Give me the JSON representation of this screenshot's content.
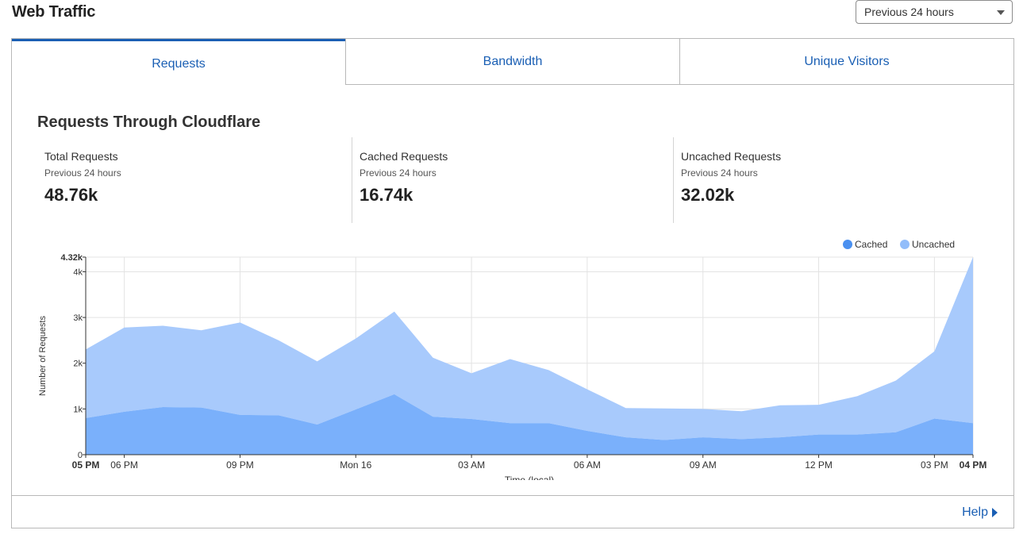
{
  "header": {
    "title": "Web Traffic",
    "range_selected": "Previous 24 hours"
  },
  "tabs": [
    {
      "label": "Requests",
      "active": true
    },
    {
      "label": "Bandwidth",
      "active": false
    },
    {
      "label": "Unique Visitors",
      "active": false
    }
  ],
  "section": {
    "title": "Requests Through Cloudflare"
  },
  "stats": [
    {
      "label": "Total Requests",
      "sub": "Previous 24 hours",
      "value": "48.76k"
    },
    {
      "label": "Cached Requests",
      "sub": "Previous 24 hours",
      "value": "16.74k"
    },
    {
      "label": "Uncached Requests",
      "sub": "Previous 24 hours",
      "value": "32.02k"
    }
  ],
  "footer": {
    "help_label": "Help"
  },
  "colors": {
    "accent": "#1a5fb4",
    "cached": "#7ab0fb",
    "uncached": "#a8cafc",
    "legend_cached": "#4a90f0",
    "legend_uncached": "#92bdfa"
  },
  "chart_data": {
    "type": "area",
    "stacked": true,
    "xlabel": "Time (local)",
    "ylabel": "Number of Requests",
    "ylim": [
      0,
      4320
    ],
    "y_ticks": [
      {
        "value": 0,
        "label": "0"
      },
      {
        "value": 1000,
        "label": "1k"
      },
      {
        "value": 2000,
        "label": "2k"
      },
      {
        "value": 3000,
        "label": "3k"
      },
      {
        "value": 4000,
        "label": "4k"
      },
      {
        "value": 4320,
        "label": "4.32k"
      }
    ],
    "x": [
      0,
      1,
      2,
      3,
      4,
      5,
      6,
      7,
      8,
      9,
      10,
      11,
      12,
      13,
      14,
      15,
      16,
      17,
      18,
      19,
      20,
      21,
      22,
      23
    ],
    "x_ticks": [
      {
        "x": 0,
        "label": "05 PM",
        "bold": true
      },
      {
        "x": 1,
        "label": "06 PM",
        "bold": false
      },
      {
        "x": 4,
        "label": "09 PM",
        "bold": false
      },
      {
        "x": 7,
        "label": "Mon 16",
        "bold": false
      },
      {
        "x": 10,
        "label": "03 AM",
        "bold": false
      },
      {
        "x": 13,
        "label": "06 AM",
        "bold": false
      },
      {
        "x": 16,
        "label": "09 AM",
        "bold": false
      },
      {
        "x": 19,
        "label": "12 PM",
        "bold": false
      },
      {
        "x": 22,
        "label": "03 PM",
        "bold": false
      },
      {
        "x": 23,
        "label": "04 PM",
        "bold": true
      }
    ],
    "legend": [
      {
        "name": "Cached",
        "color": "#4a90f0"
      },
      {
        "name": "Uncached",
        "color": "#92bdfa"
      }
    ],
    "legend_position": "top-right",
    "series": [
      {
        "name": "Cached",
        "values": [
          800,
          940,
          1040,
          1030,
          870,
          860,
          660,
          990,
          1320,
          830,
          780,
          690,
          690,
          520,
          380,
          320,
          380,
          340,
          380,
          440,
          440,
          490,
          790,
          690
        ]
      },
      {
        "name": "Uncached",
        "values": [
          1500,
          1840,
          1780,
          1690,
          2020,
          1640,
          1380,
          1550,
          1810,
          1290,
          1000,
          1400,
          1160,
          910,
          640,
          690,
          620,
          610,
          700,
          650,
          840,
          1130,
          1470,
          3630
        ]
      }
    ]
  }
}
